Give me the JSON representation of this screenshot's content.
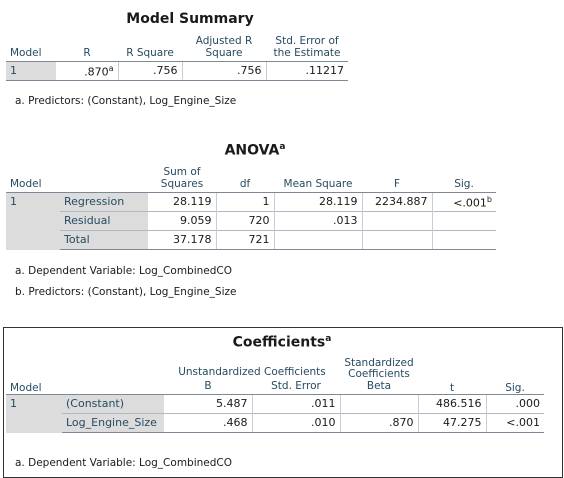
{
  "model_summary": {
    "title": "Model Summary",
    "headers": [
      "Model",
      "R",
      "R Square",
      "Adjusted R Square",
      "Std. Error of the Estimate"
    ],
    "row": {
      "model": "1",
      "r": ".870",
      "r_sup": "a",
      "r_square": ".756",
      "adj_r_square": ".756",
      "std_error": ".11217"
    },
    "footnote": "a. Predictors: (Constant), Log_Engine_Size"
  },
  "anova": {
    "title": "ANOVA",
    "title_sup": "a",
    "headers": [
      "Model",
      "Sum of Squares",
      "df",
      "Mean Square",
      "F",
      "Sig."
    ],
    "model": "1",
    "rows": [
      {
        "label": "Regression",
        "ss": "28.119",
        "df": "1",
        "ms": "28.119",
        "f": "2234.887",
        "sig": "<.001",
        "sig_sup": "b"
      },
      {
        "label": "Residual",
        "ss": "9.059",
        "df": "720",
        "ms": ".013",
        "f": "",
        "sig": "",
        "sig_sup": ""
      },
      {
        "label": "Total",
        "ss": "37.178",
        "df": "721",
        "ms": "",
        "f": "",
        "sig": "",
        "sig_sup": ""
      }
    ],
    "footnotes": [
      "a. Dependent Variable: Log_CombinedCO",
      "b. Predictors: (Constant), Log_Engine_Size"
    ]
  },
  "coefficients": {
    "title": "Coefficients",
    "title_sup": "a",
    "group_headers": {
      "unstandardized": "Unstandardized Coefficients",
      "standardized": "Standardized Coefficients"
    },
    "headers": [
      "Model",
      "B",
      "Std. Error",
      "Beta",
      "t",
      "Sig."
    ],
    "model": "1",
    "rows": [
      {
        "label": "(Constant)",
        "b": "5.487",
        "se": ".011",
        "beta": "",
        "t": "486.516",
        "sig": ".000"
      },
      {
        "label": "Log_Engine_Size",
        "b": ".468",
        "se": ".010",
        "beta": ".870",
        "t": "47.275",
        "sig": "<.001"
      }
    ],
    "footnote": "a. Dependent Variable: Log_CombinedCO"
  }
}
